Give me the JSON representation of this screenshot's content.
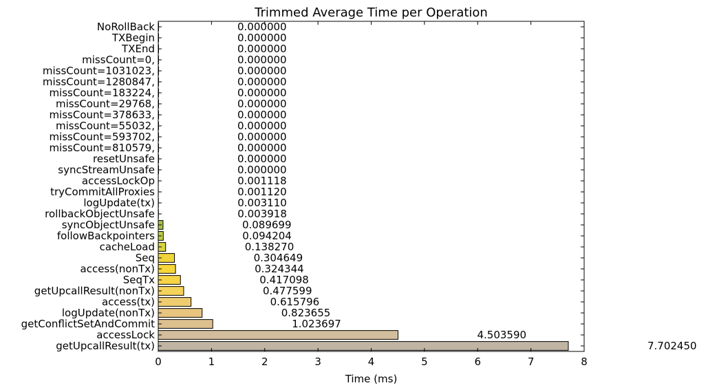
{
  "chart_data": {
    "type": "bar",
    "orientation": "horizontal",
    "title": "Trimmed Average Time per Operation",
    "xlabel": "Time (ms)",
    "ylabel": "",
    "xlim": [
      0,
      8
    ],
    "xticks": [
      "0",
      "1",
      "2",
      "3",
      "4",
      "5",
      "6",
      "7",
      "8"
    ],
    "grid": false,
    "categories": [
      "NoRollBack",
      "TXBegin",
      "TXEnd",
      "missCount=0,",
      "missCount=1031023,",
      "missCount=1280847,",
      "missCount=183224,",
      "missCount=29768,",
      "missCount=378633,",
      "missCount=55032,",
      "missCount=593702,",
      "missCount=810579,",
      "resetUnsafe",
      "syncStreamUnsafe",
      "accessLockOp",
      "tryCommitAllProxies",
      "logUpdate(tx)",
      "rollbackObjectUnsafe",
      "syncObjectUnsafe",
      "followBackpointers",
      "cacheLoad",
      "Seq",
      "access(nonTx)",
      "SeqTx",
      "getUpcallResult(nonTx)",
      "access(tx)",
      "logUpdate(nonTx)",
      "getConflictSetAndCommit",
      "accessLock",
      "getUpcallResult(tx)"
    ],
    "values": [
      0.0,
      0.0,
      0.0,
      0.0,
      0.0,
      0.0,
      0.0,
      0.0,
      0.0,
      0.0,
      0.0,
      0.0,
      0.0,
      0.0,
      0.001118,
      0.00112,
      0.00311,
      0.003918,
      0.089699,
      0.094204,
      0.13827,
      0.304649,
      0.324344,
      0.417098,
      0.477599,
      0.615796,
      0.823655,
      1.023697,
      4.50359,
      7.70245
    ],
    "value_labels": [
      "0.000000",
      "0.000000",
      "0.000000",
      "0.000000",
      "0.000000",
      "0.000000",
      "0.000000",
      "0.000000",
      "0.000000",
      "0.000000",
      "0.000000",
      "0.000000",
      "0.000000",
      "0.000000",
      "0.001118",
      "0.001120",
      "0.003110",
      "0.003918",
      "0.089699",
      "0.094204",
      "0.138270",
      "0.304649",
      "0.324344",
      "0.417098",
      "0.477599",
      "0.615796",
      "0.823655",
      "1.023697",
      "4.503590",
      "7.702450"
    ],
    "colors": [
      "#a6c24a",
      "#a6c24a",
      "#a6c24a",
      "#a6c24a",
      "#a6c24a",
      "#a6c24a",
      "#a6c24a",
      "#a6c24a",
      "#a6c24a",
      "#a6c24a",
      "#a6c24a",
      "#a6c24a",
      "#a6c24a",
      "#a6c24a",
      "#a6c24a",
      "#a6c24a",
      "#a6c24a",
      "#a6c24a",
      "#a6c24a",
      "#bdd047",
      "#d9d33e",
      "#f0d43a",
      "#f7d63b",
      "#f7d346",
      "#f5d25a",
      "#efcc70",
      "#e8c47f",
      "#ddc08e",
      "#d2bd9c",
      "#c0b5a3"
    ]
  }
}
